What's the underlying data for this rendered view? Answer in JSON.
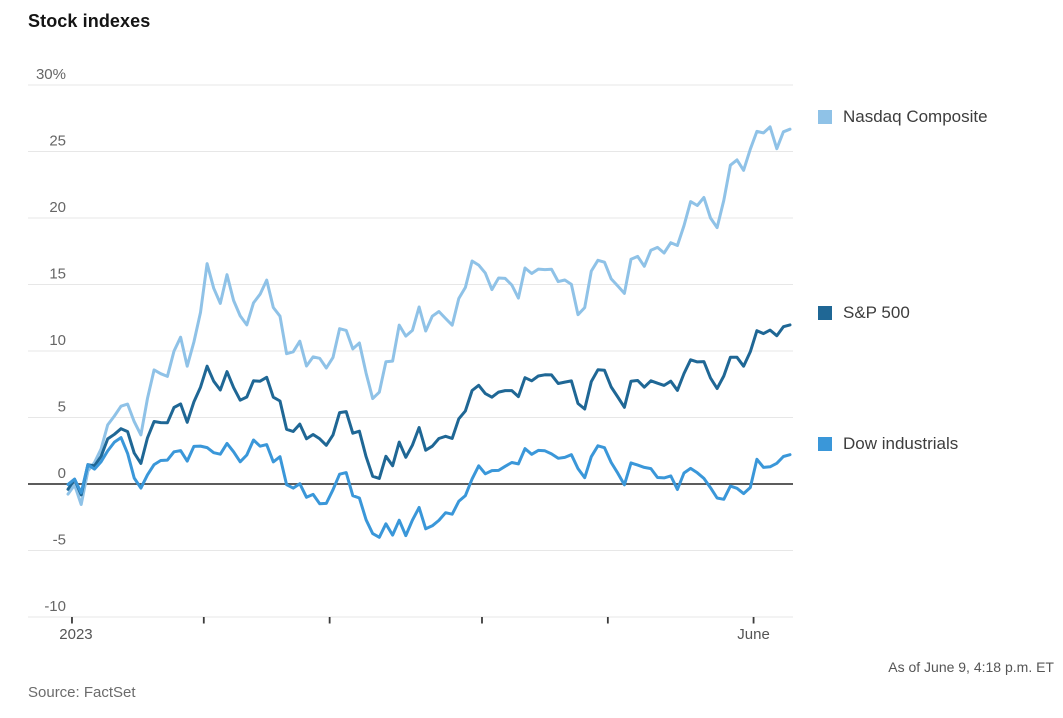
{
  "chart_data": {
    "type": "line",
    "title": "Stock indexes",
    "unit": "%",
    "ylim": [
      -10,
      30
    ],
    "yticks": [
      30,
      25,
      20,
      15,
      10,
      5,
      0,
      -5,
      -10
    ],
    "ytick_labels": [
      "30%",
      "25",
      "20",
      "15",
      "10",
      "5",
      "0",
      "-5",
      "-10"
    ],
    "grid": "horizontal",
    "zero_baseline": true,
    "legend_position": "right",
    "x_axis": {
      "start_label": "2023",
      "end_label": "June",
      "tick_day_positions": [
        0.6,
        20.5,
        39.5,
        62.5,
        81.5,
        103.5
      ]
    },
    "series": [
      {
        "name": "Nasdaq Composite",
        "color": "#8fc2e7",
        "values": [
          -0.76,
          -0.07,
          -1.54,
          0.98,
          1.62,
          2.64,
          4.44,
          5.11,
          5.85,
          6.01,
          4.69,
          3.69,
          6.44,
          8.58,
          8.29,
          8.09,
          9.99,
          11.04,
          8.86,
          10.68,
          12.9,
          16.57,
          14.72,
          13.58,
          15.74,
          13.8,
          12.64,
          11.96,
          13.62,
          14.27,
          15.33,
          13.27,
          12.62,
          9.8,
          9.94,
          10.74,
          8.87,
          9.56,
          9.45,
          8.72,
          9.52,
          11.68,
          11.55,
          10.16,
          10.6,
          8.33,
          6.42,
          6.9,
          9.19,
          9.24,
          11.95,
          11.12,
          11.55,
          13.31,
          11.5,
          12.62,
          12.97,
          12.44,
          11.94,
          13.95,
          14.78,
          16.77,
          16.46,
          15.86,
          14.62,
          15.49,
          15.46,
          14.96,
          13.98,
          16.24,
          15.83,
          16.16,
          16.12,
          16.15,
          15.22,
          15.34,
          15.01,
          12.73,
          13.26,
          16.01,
          16.82,
          16.68,
          15.42,
          14.89,
          14.33,
          16.9,
          17.11,
          16.37,
          17.58,
          17.79,
          17.37,
          18.14,
          17.93,
          19.43,
          21.23,
          20.94,
          21.54,
          20.0,
          19.28,
          21.32,
          23.97,
          24.37,
          23.59,
          25.17,
          26.51,
          26.4,
          26.85,
          25.21,
          26.48,
          26.68
        ]
      },
      {
        "name": "S&P 500",
        "color": "#1f6795",
        "values": [
          -0.4,
          0.35,
          -0.82,
          1.45,
          1.37,
          2.08,
          3.39,
          3.74,
          4.16,
          3.94,
          2.33,
          1.55,
          3.47,
          4.7,
          4.62,
          4.6,
          5.75,
          6.02,
          4.64,
          6.17,
          7.28,
          8.86,
          7.73,
          7.07,
          8.45,
          7.25,
          6.3,
          6.54,
          7.76,
          7.73,
          8.02,
          6.53,
          6.24,
          4.11,
          3.95,
          4.5,
          3.4,
          3.72,
          3.4,
          2.91,
          3.69,
          5.37,
          5.44,
          3.82,
          3.97,
          2.05,
          0.58,
          0.42,
          2.08,
          1.37,
          3.15,
          2.01,
          2.92,
          4.25,
          2.54,
          2.84,
          3.42,
          3.59,
          3.43,
          4.9,
          5.5,
          7.03,
          7.42,
          6.8,
          6.53,
          6.91,
          7.02,
          7.02,
          6.57,
          7.99,
          7.76,
          8.12,
          8.21,
          8.2,
          7.56,
          7.66,
          7.75,
          6.05,
          5.64,
          7.7,
          8.59,
          8.55,
          7.29,
          6.54,
          5.77,
          7.73,
          7.78,
          7.28,
          7.76,
          7.58,
          7.41,
          7.73,
          7.04,
          8.31,
          9.34,
          9.18,
          9.2,
          7.97,
          7.18,
          8.12,
          9.53,
          9.53,
          8.86,
          9.94,
          11.53,
          11.31,
          11.57,
          11.15,
          11.83,
          11.96
        ]
      },
      {
        "name": "Dow industrials",
        "color": "#3a97d9",
        "values": [
          -0.03,
          0.37,
          -0.66,
          1.46,
          1.12,
          1.68,
          2.49,
          3.15,
          3.49,
          2.3,
          0.45,
          -0.31,
          0.69,
          1.46,
          1.77,
          1.8,
          2.42,
          2.51,
          1.72,
          2.83,
          2.85,
          2.74,
          2.35,
          2.24,
          3.05,
          2.42,
          1.67,
          2.18,
          3.31,
          2.84,
          2.96,
          1.66,
          2.05,
          -0.05,
          -0.31,
          0.02,
          -1.0,
          -0.78,
          -1.48,
          -1.46,
          -0.43,
          0.74,
          0.86,
          -0.88,
          -1.05,
          -2.69,
          -3.73,
          -4.01,
          -2.99,
          -3.84,
          -2.72,
          -3.88,
          -2.72,
          -1.77,
          -3.37,
          -3.14,
          -2.74,
          -2.16,
          -2.27,
          -1.3,
          -0.87,
          0.38,
          1.37,
          0.77,
          1.01,
          1.02,
          1.33,
          1.62,
          1.51,
          2.66,
          2.23,
          2.53,
          2.5,
          2.26,
          1.93,
          2.0,
          2.2,
          1.16,
          0.47,
          2.05,
          2.87,
          2.73,
          1.62,
          0.81,
          -0.06,
          1.59,
          1.42,
          1.25,
          1.16,
          0.49,
          0.46,
          0.61,
          -0.41,
          0.83,
          1.17,
          0.84,
          0.42,
          -0.28,
          -1.05,
          -1.15,
          -0.16,
          -0.32,
          -0.72,
          -0.26,
          1.86,
          1.25,
          1.29,
          1.56,
          2.07,
          2.2
        ]
      }
    ],
    "note": "As of June 9, 4:18 p.m. ET",
    "source": "Source: FactSet"
  },
  "colors": {
    "gridline": "#e7e7e7",
    "zero_line": "#454545",
    "tick": "#3c3c3c",
    "axis_text": "#666666"
  }
}
